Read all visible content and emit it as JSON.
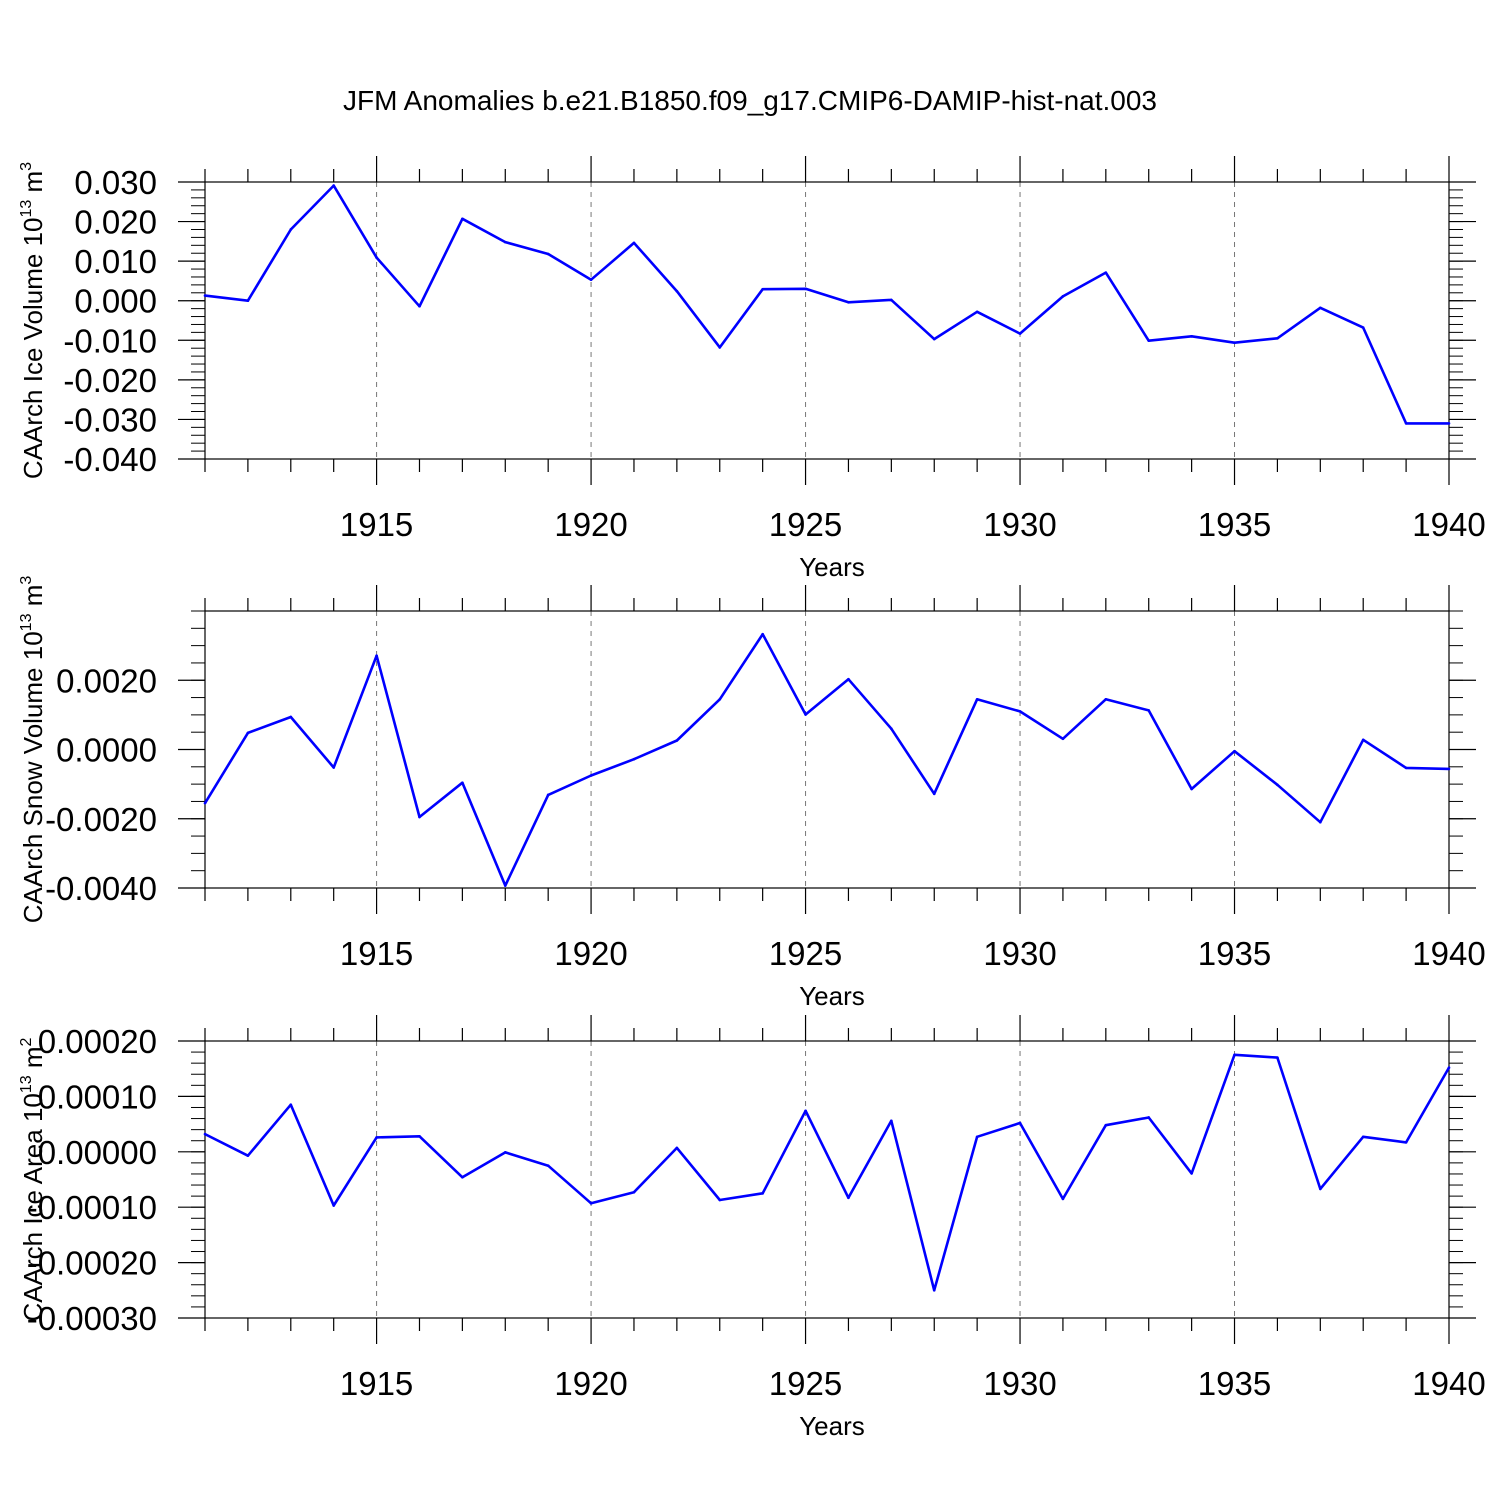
{
  "title": "JFM Anomalies b.e21.B1850.f09_g17.CMIP6-DAMIP-hist-nat.003",
  "chart_data": [
    {
      "type": "line",
      "id": "ice-volume",
      "title": "JFM Anomalies b.e21.B1850.f09_g17.CMIP6-DAMIP-hist-nat.003",
      "xlabel": "Years",
      "ylabel": {
        "prefix": "CAArch Ice Volume 10",
        "exponent": "13",
        "unit": " m",
        "unit_exponent": "3"
      },
      "xlim": [
        1911,
        1940
      ],
      "ylim": [
        -0.04,
        0.03
      ],
      "x_ticks": [
        1915,
        1920,
        1925,
        1930,
        1935,
        1940
      ],
      "y_ticks": [
        -0.04,
        -0.03,
        -0.02,
        -0.01,
        0.0,
        0.01,
        0.02,
        0.03
      ],
      "y_tick_labels": [
        "-0.040",
        "-0.030",
        "-0.020",
        "-0.010",
        "0.000",
        "0.010",
        "0.020",
        "0.030"
      ],
      "y_minor_step": 0.002,
      "color": "#0000ff",
      "x": [
        1911,
        1912,
        1913,
        1914,
        1915,
        1916,
        1917,
        1918,
        1919,
        1920,
        1921,
        1922,
        1923,
        1924,
        1925,
        1926,
        1927,
        1928,
        1929,
        1930,
        1931,
        1932,
        1933,
        1934,
        1935,
        1936,
        1937,
        1938,
        1939,
        1940
      ],
      "values": [
        0.0013,
        0.0,
        0.018,
        0.0291,
        0.0109,
        -0.0014,
        0.0207,
        0.0148,
        0.0118,
        0.0053,
        0.0146,
        0.0024,
        -0.0118,
        0.0029,
        0.003,
        -0.0004,
        0.0002,
        -0.0097,
        -0.0028,
        -0.0083,
        0.0011,
        0.0071,
        -0.0101,
        -0.009,
        -0.0106,
        -0.0095,
        -0.0018,
        -0.0068,
        -0.031,
        -0.031
      ]
    },
    {
      "type": "line",
      "id": "snow-volume",
      "xlabel": "Years",
      "ylabel": {
        "prefix": "CAArch Snow Volume 10",
        "exponent": "13",
        "unit": " m",
        "unit_exponent": "3"
      },
      "xlim": [
        1911,
        1940
      ],
      "ylim": [
        -0.004,
        0.004
      ],
      "x_ticks": [
        1915,
        1920,
        1925,
        1930,
        1935,
        1940
      ],
      "y_ticks": [
        -0.004,
        -0.002,
        0.0,
        0.002
      ],
      "y_tick_labels": [
        "-0.0040",
        "-0.0020",
        "0.0000",
        "0.0020"
      ],
      "y_minor_step": 0.0005,
      "color": "#0000ff",
      "x": [
        1911,
        1912,
        1913,
        1914,
        1915,
        1916,
        1917,
        1918,
        1919,
        1920,
        1921,
        1922,
        1923,
        1924,
        1925,
        1926,
        1927,
        1928,
        1929,
        1930,
        1931,
        1932,
        1933,
        1934,
        1935,
        1936,
        1937,
        1938,
        1939,
        1940
      ],
      "values": [
        -0.00155,
        0.00048,
        0.00094,
        -0.00052,
        0.00271,
        -0.00195,
        -0.00096,
        -0.00393,
        -0.00131,
        -0.00075,
        -0.00028,
        0.00026,
        0.00145,
        0.00333,
        0.00101,
        0.00203,
        0.0006,
        -0.00128,
        0.00145,
        0.0011,
        0.00031,
        0.00145,
        0.00113,
        -0.00114,
        -5e-05,
        -0.00102,
        -0.0021,
        0.00028,
        -0.00053,
        -0.00056
      ]
    },
    {
      "type": "line",
      "id": "ice-area",
      "xlabel": "Years",
      "ylabel": {
        "prefix": "CAArch Ice Area 10",
        "exponent": "13",
        "unit": " m",
        "unit_exponent": "2"
      },
      "xlim": [
        1911,
        1940
      ],
      "ylim": [
        -0.0003,
        0.0002
      ],
      "x_ticks": [
        1915,
        1920,
        1925,
        1930,
        1935,
        1940
      ],
      "y_ticks": [
        -0.0003,
        -0.0002,
        -0.0001,
        0.0,
        0.0001,
        0.0002
      ],
      "y_tick_labels": [
        "-0.00030",
        "-0.00020",
        "-0.00010",
        "0.00000",
        "0.00010",
        "0.00020"
      ],
      "y_minor_step": 2e-05,
      "color": "#0000ff",
      "x": [
        1911,
        1912,
        1913,
        1914,
        1915,
        1916,
        1917,
        1918,
        1919,
        1920,
        1921,
        1922,
        1923,
        1924,
        1925,
        1926,
        1927,
        1928,
        1929,
        1930,
        1931,
        1932,
        1933,
        1934,
        1935,
        1936,
        1937,
        1938,
        1939,
        1940
      ],
      "values": [
        3.2e-05,
        -7e-06,
        8.5e-05,
        -9.7e-05,
        2.6e-05,
        2.8e-05,
        -4.6e-05,
        -1e-06,
        -2.5e-05,
        -9.3e-05,
        -7.3e-05,
        7e-06,
        -8.7e-05,
        -7.5e-05,
        7.4e-05,
        -8.3e-05,
        5.6e-05,
        -0.00025,
        2.7e-05,
        5.2e-05,
        -8.5e-05,
        4.8e-05,
        6.2e-05,
        -3.9e-05,
        0.000175,
        0.00017,
        -6.7e-05,
        2.7e-05,
        1.7e-05,
        0.000152
      ]
    }
  ]
}
